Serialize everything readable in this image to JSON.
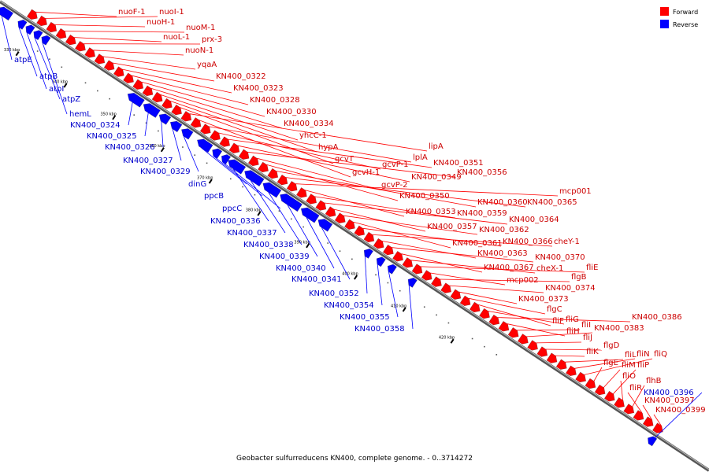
{
  "caption": "Geobacter sulfurreducens KN400, complete genome. - 0..3714272",
  "legend": {
    "forward_label": "Forward",
    "reverse_label": "Reverse",
    "forward_color": "#ff0000",
    "reverse_color": "#0000ff"
  },
  "scale_ticks": [
    "330 kbp",
    "340 kbp",
    "350 kbp",
    "360 kbp",
    "370 kbp",
    "380 kbp",
    "390 kbp",
    "400 kbp",
    "410 kbp",
    "420 kbp"
  ],
  "forward_genes": [
    "nuoF-1",
    "nuoI-1",
    "nuoH-1",
    "nuoM-1",
    "nuoL-1",
    "prx-3",
    "nuoN-1",
    "yqaA",
    "KN400_0322",
    "KN400_0323",
    "KN400_0328",
    "KN400_0330",
    "KN400_0334",
    "yhcC-1",
    "hypA",
    "gcvT",
    "lipA",
    "gcvH-1",
    "lplA",
    "gcvP-1",
    "KN400_0351",
    "KN400_0349",
    "KN400_0356",
    "gcvP-2",
    "KN400_0350",
    "KN400_0360",
    "KN400_0365",
    "mcp001",
    "KN400_0353",
    "KN400_0359",
    "KN400_0364",
    "KN400_0357",
    "KN400_0362",
    "KN400_0361",
    "KN400_0366",
    "cheY-1",
    "KN400_0363",
    "KN400_0370",
    "KN400_0367",
    "cheX-1",
    "fliE",
    "mcp002",
    "flgB",
    "KN400_0374",
    "KN400_0373",
    "flgC",
    "fliF",
    "fliG",
    "KN400_0386",
    "fliH",
    "fliI",
    "KN400_0383",
    "fliJ",
    "flgD",
    "fliK",
    "fliL",
    "fliN",
    "fliQ",
    "flgE",
    "fliM",
    "fliP",
    "fliO",
    "flhB",
    "fliR",
    "KN400_0397",
    "KN400_0399"
  ],
  "reverse_genes": [
    "atpE",
    "atpB",
    "atpI",
    "atpZ",
    "hemL",
    "KN400_0324",
    "KN400_0325",
    "KN400_0326",
    "KN400_0327",
    "KN400_0329",
    "dinG",
    "ppcB",
    "ppcC",
    "KN400_0336",
    "KN400_0337",
    "KN400_0338",
    "KN400_0339",
    "KN400_0340",
    "KN400_0341",
    "KN400_0352",
    "KN400_0354",
    "KN400_0355",
    "KN400_0358",
    "KN400_0396"
  ]
}
